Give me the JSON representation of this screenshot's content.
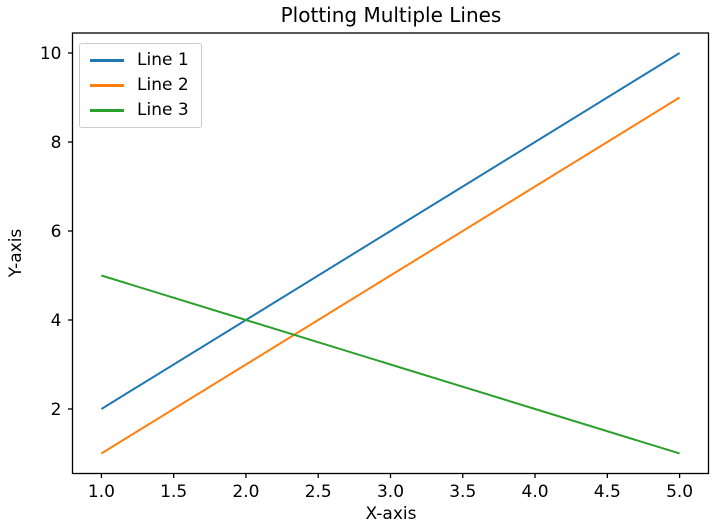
{
  "chart_data": {
    "type": "line",
    "title": "Plotting Multiple Lines",
    "xlabel": "X-axis",
    "ylabel": "Y-axis",
    "x": [
      1,
      2,
      3,
      4,
      5
    ],
    "series": [
      {
        "name": "Line 1",
        "color": "#1f77b4",
        "values": [
          2,
          4,
          6,
          8,
          10
        ]
      },
      {
        "name": "Line 2",
        "color": "#ff7f0e",
        "values": [
          1,
          3,
          5,
          7,
          9
        ]
      },
      {
        "name": "Line 3",
        "color": "#2ca02c",
        "values": [
          5,
          4,
          3,
          2,
          1
        ]
      }
    ],
    "xlim": [
      0.8,
      5.2
    ],
    "ylim": [
      0.55,
      10.45
    ],
    "xticks": [
      1.0,
      1.5,
      2.0,
      2.5,
      3.0,
      3.5,
      4.0,
      4.5,
      5.0
    ],
    "xtick_labels": [
      "1.0",
      "1.5",
      "2.0",
      "2.5",
      "3.0",
      "3.5",
      "4.0",
      "4.5",
      "5.0"
    ],
    "yticks": [
      2,
      4,
      6,
      8,
      10
    ],
    "ytick_labels": [
      "2",
      "4",
      "6",
      "8",
      "10"
    ],
    "grid": false,
    "legend": {
      "position": "upper left",
      "entries": [
        "Line 1",
        "Line 2",
        "Line 3"
      ]
    },
    "axis_color": "#000000",
    "text_color": "#000000",
    "background_color": "#ffffff"
  }
}
